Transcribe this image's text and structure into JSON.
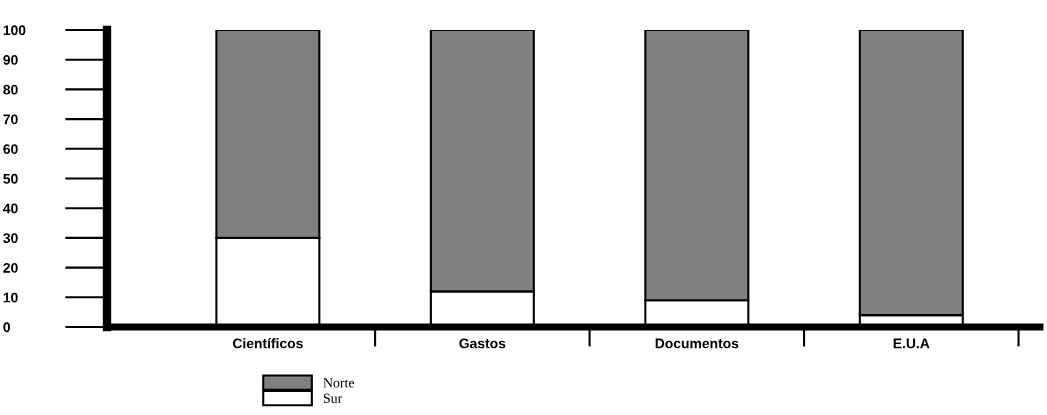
{
  "chart_data": {
    "type": "bar",
    "stacked": true,
    "categories": [
      "Científicos",
      "Gastos",
      "Documentos",
      "E.U.A"
    ],
    "series": [
      {
        "name": "Sur",
        "color": "#ffffff",
        "values": [
          30,
          12,
          9,
          4
        ]
      },
      {
        "name": "Norte",
        "color": "#808080",
        "values": [
          70,
          88,
          91,
          96
        ]
      }
    ],
    "ylim": [
      0,
      100
    ],
    "yticks": [
      0,
      10,
      20,
      30,
      40,
      50,
      60,
      70,
      80,
      90,
      100
    ],
    "grid": false,
    "legend": "bottom"
  }
}
